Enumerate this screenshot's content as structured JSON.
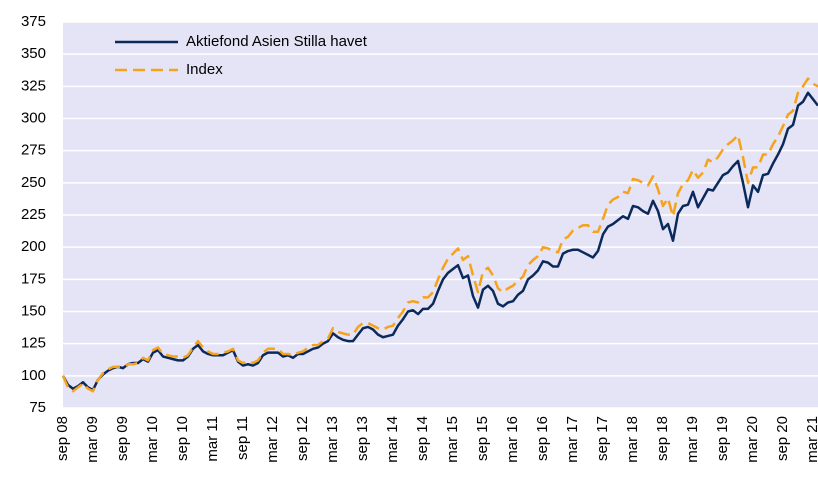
{
  "chart_data": {
    "type": "line",
    "categories": [
      "sep 08",
      null,
      null,
      null,
      null,
      null,
      "mar 09",
      null,
      null,
      null,
      null,
      null,
      "sep 09",
      null,
      null,
      null,
      null,
      null,
      "mar 10",
      null,
      null,
      null,
      null,
      null,
      "sep 10",
      null,
      null,
      null,
      null,
      null,
      "mar 11",
      null,
      null,
      null,
      null,
      null,
      "sep 11",
      null,
      null,
      null,
      null,
      null,
      "mar 12",
      null,
      null,
      null,
      null,
      null,
      "sep 12",
      null,
      null,
      null,
      null,
      null,
      "mar 13",
      null,
      null,
      null,
      null,
      null,
      "sep 13",
      null,
      null,
      null,
      null,
      null,
      "mar 14",
      null,
      null,
      null,
      null,
      null,
      "sep 14",
      null,
      null,
      null,
      null,
      null,
      "mar 15",
      null,
      null,
      null,
      null,
      null,
      "sep 15",
      null,
      null,
      null,
      null,
      null,
      "mar 16",
      null,
      null,
      null,
      null,
      null,
      "sep 16",
      null,
      null,
      null,
      null,
      null,
      "mar 17",
      null,
      null,
      null,
      null,
      null,
      "sep 17",
      null,
      null,
      null,
      null,
      null,
      "mar 18",
      null,
      null,
      null,
      null,
      null,
      "sep 18",
      null,
      null,
      null,
      null,
      null,
      "mar 19",
      null,
      null,
      null,
      null,
      null,
      "sep 19",
      null,
      null,
      null,
      null,
      null,
      "mar 20",
      null,
      null,
      null,
      null,
      null,
      "sep 20",
      null,
      null,
      null,
      null,
      null,
      "mar 21",
      null
    ],
    "series": [
      {
        "name": "Aktiefond Asien Stilla havet",
        "color": "#0b2a5b",
        "dashed": false,
        "values": [
          100,
          93,
          90,
          92,
          95,
          91,
          89,
          97,
          101,
          104,
          106,
          107,
          106,
          109,
          110,
          110,
          113,
          111,
          118,
          120,
          115,
          114,
          113,
          112,
          112,
          115,
          121,
          124,
          119,
          117,
          116,
          116,
          116,
          118,
          120,
          111,
          108,
          109,
          108,
          110,
          116,
          118,
          118,
          118,
          115,
          116,
          114,
          117,
          117,
          119,
          121,
          122,
          125,
          127,
          133,
          130,
          128,
          127,
          127,
          132,
          137,
          138,
          136,
          132,
          130,
          131,
          132,
          139,
          144,
          150,
          151,
          148,
          152,
          152,
          156,
          166,
          175,
          180,
          183,
          186,
          176,
          178,
          162,
          153,
          167,
          170,
          166,
          156,
          154,
          157,
          158,
          163,
          166,
          175,
          178,
          182,
          189,
          188,
          185,
          185,
          195,
          197,
          198,
          198,
          196,
          194,
          192,
          197,
          210,
          216,
          218,
          221,
          224,
          222,
          232,
          231,
          228,
          226,
          236,
          228,
          214,
          218,
          205,
          226,
          232,
          233,
          243,
          231,
          238,
          245,
          244,
          250,
          256,
          258,
          263,
          267,
          250,
          231,
          248,
          243,
          256,
          257,
          265,
          272,
          280,
          292,
          295,
          310,
          313,
          320,
          315,
          310
        ]
      },
      {
        "name": "Index",
        "color": "#f7a21b",
        "dashed": true,
        "values": [
          100,
          91,
          88,
          91,
          94,
          90,
          88,
          97,
          102,
          105,
          107,
          107,
          107,
          109,
          109,
          110,
          114,
          112,
          120,
          122,
          117,
          116,
          115,
          115,
          114,
          116,
          122,
          127,
          122,
          119,
          117,
          117,
          118,
          119,
          121,
          112,
          110,
          111,
          110,
          112,
          118,
          121,
          121,
          121,
          117,
          117,
          116,
          118,
          119,
          122,
          124,
          124,
          127,
          129,
          137,
          134,
          133,
          132,
          132,
          138,
          141,
          141,
          139,
          137,
          136,
          138,
          139,
          145,
          150,
          157,
          158,
          157,
          161,
          161,
          165,
          175,
          184,
          191,
          195,
          199,
          190,
          193,
          178,
          165,
          181,
          184,
          178,
          168,
          165,
          168,
          170,
          174,
          177,
          186,
          190,
          193,
          200,
          199,
          197,
          196,
          206,
          208,
          213,
          215,
          217,
          217,
          212,
          212,
          222,
          233,
          237,
          239,
          243,
          242,
          253,
          252,
          250,
          248,
          255,
          245,
          232,
          238,
          224,
          242,
          249,
          252,
          260,
          254,
          258,
          268,
          266,
          270,
          276,
          280,
          283,
          287,
          270,
          250,
          262,
          262,
          272,
          272,
          280,
          286,
          294,
          303,
          306,
          320,
          325,
          331,
          327,
          325
        ]
      }
    ],
    "ylim": [
      75,
      375
    ],
    "yticks": [
      75,
      100,
      125,
      150,
      175,
      200,
      225,
      250,
      275,
      300,
      325,
      350,
      375
    ],
    "grid": true,
    "legend": "upper-left",
    "background": "#e4e4f6"
  }
}
